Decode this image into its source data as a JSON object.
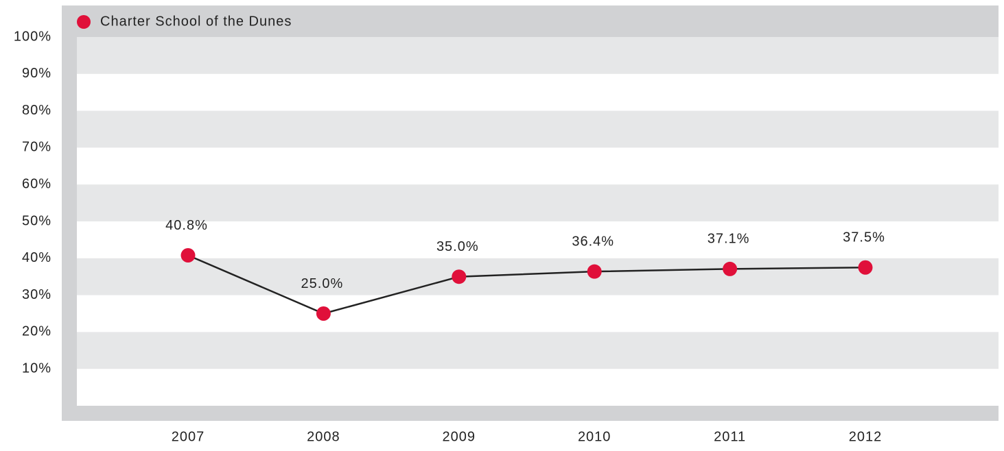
{
  "chart_data": {
    "type": "line",
    "categories": [
      "2007",
      "2008",
      "2009",
      "2010",
      "2011",
      "2012"
    ],
    "series": [
      {
        "name": "Charter School of the Dunes",
        "color": "#e0103a",
        "line_color": "#222222",
        "values": [
          40.8,
          25.0,
          35.0,
          36.4,
          37.1,
          37.5
        ],
        "value_labels": [
          "40.8%",
          "25.0%",
          "35.0%",
          "36.4%",
          "37.1%",
          "37.5%"
        ]
      }
    ],
    "ylim": [
      0,
      100
    ],
    "yticks": [
      {
        "value": 10,
        "label": "10%"
      },
      {
        "value": 20,
        "label": "20%"
      },
      {
        "value": 30,
        "label": "30%"
      },
      {
        "value": 40,
        "label": "40%"
      },
      {
        "value": 50,
        "label": "50%"
      },
      {
        "value": 60,
        "label": "60%"
      },
      {
        "value": 70,
        "label": "70%"
      },
      {
        "value": 80,
        "label": "80%"
      },
      {
        "value": 90,
        "label": "90%"
      },
      {
        "value": 100,
        "label": "100%"
      }
    ],
    "grid": true,
    "legend": "top-left"
  }
}
